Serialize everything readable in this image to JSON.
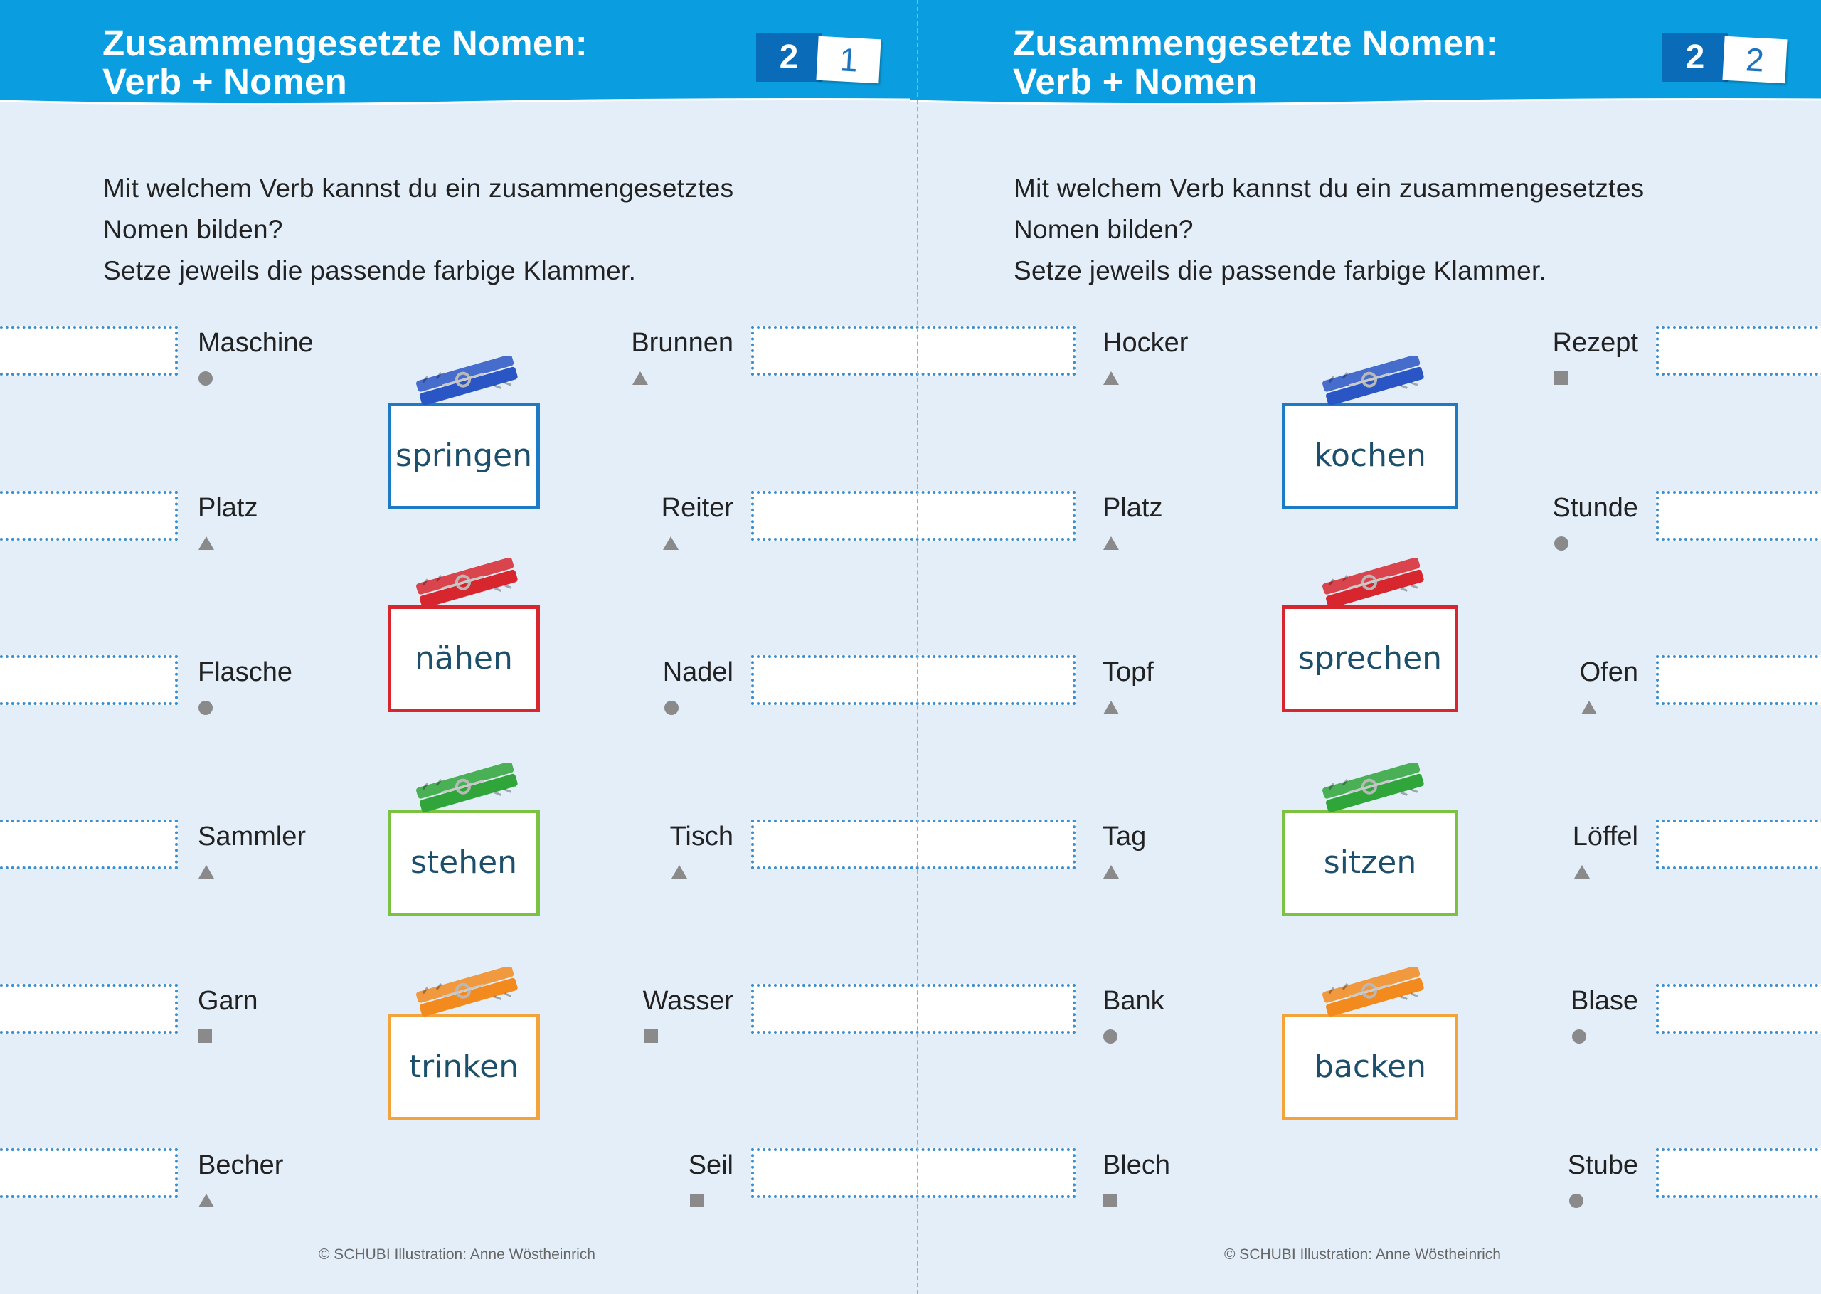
{
  "pages": [
    {
      "title_line1": "Zusammengesetzte Nomen:",
      "title_line2": "Verb + Nomen",
      "badge_number": "2",
      "badge_card": "1",
      "instructions": [
        "Mit welchem Verb kannst du ein zusammengesetztes",
        "Nomen bilden?",
        "Setze jeweils die passende farbige Klammer."
      ],
      "left_words": [
        {
          "word": "Maschine",
          "symbol": "circle"
        },
        {
          "word": "Platz",
          "symbol": "triangle"
        },
        {
          "word": "Flasche",
          "symbol": "circle"
        },
        {
          "word": "Sammler",
          "symbol": "triangle"
        },
        {
          "word": "Garn",
          "symbol": "square"
        },
        {
          "word": "Becher",
          "symbol": "triangle"
        }
      ],
      "right_words": [
        {
          "word": "Brunnen",
          "symbol": "triangle"
        },
        {
          "word": "Reiter",
          "symbol": "triangle"
        },
        {
          "word": "Nadel",
          "symbol": "circle"
        },
        {
          "word": "Tisch",
          "symbol": "triangle"
        },
        {
          "word": "Wasser",
          "symbol": "square"
        },
        {
          "word": "Seil",
          "symbol": "square"
        }
      ],
      "verbs": [
        {
          "word": "springen",
          "color": "#1d7bc6",
          "clip_color": "#2a55c4"
        },
        {
          "word": "nähen",
          "color": "#d8262e",
          "clip_color": "#d8262e"
        },
        {
          "word": "stehen",
          "color": "#7cc142",
          "clip_color": "#2fa53a"
        },
        {
          "word": "trinken",
          "color": "#f2a33a",
          "clip_color": "#f28a1e"
        }
      ],
      "footer": "© SCHUBI  Illustration: Anne Wöstheinrich"
    },
    {
      "title_line1": "Zusammengesetzte Nomen:",
      "title_line2": "Verb + Nomen",
      "badge_number": "2",
      "badge_card": "2",
      "instructions": [
        "Mit welchem Verb kannst du ein zusammengesetztes",
        "Nomen bilden?",
        "Setze jeweils die passende farbige Klammer."
      ],
      "left_words": [
        {
          "word": "Hocker",
          "symbol": "triangle"
        },
        {
          "word": "Platz",
          "symbol": "triangle"
        },
        {
          "word": "Topf",
          "symbol": "triangle"
        },
        {
          "word": "Tag",
          "symbol": "triangle"
        },
        {
          "word": "Bank",
          "symbol": "circle"
        },
        {
          "word": "Blech",
          "symbol": "square"
        }
      ],
      "right_words": [
        {
          "word": "Rezept",
          "symbol": "square"
        },
        {
          "word": "Stunde",
          "symbol": "circle"
        },
        {
          "word": "Ofen",
          "symbol": "triangle"
        },
        {
          "word": "Löffel",
          "symbol": "triangle"
        },
        {
          "word": "Blase",
          "symbol": "circle"
        },
        {
          "word": "Stube",
          "symbol": "circle"
        }
      ],
      "verbs": [
        {
          "word": "kochen",
          "color": "#1d7bc6",
          "clip_color": "#2a55c4"
        },
        {
          "word": "sprechen",
          "color": "#d8262e",
          "clip_color": "#d8262e"
        },
        {
          "word": "sitzen",
          "color": "#7cc142",
          "clip_color": "#2fa53a"
        },
        {
          "word": "backen",
          "color": "#f2a33a",
          "clip_color": "#f28a1e"
        }
      ],
      "footer": "© SCHUBI  Illustration: Anne Wöstheinrich"
    }
  ]
}
